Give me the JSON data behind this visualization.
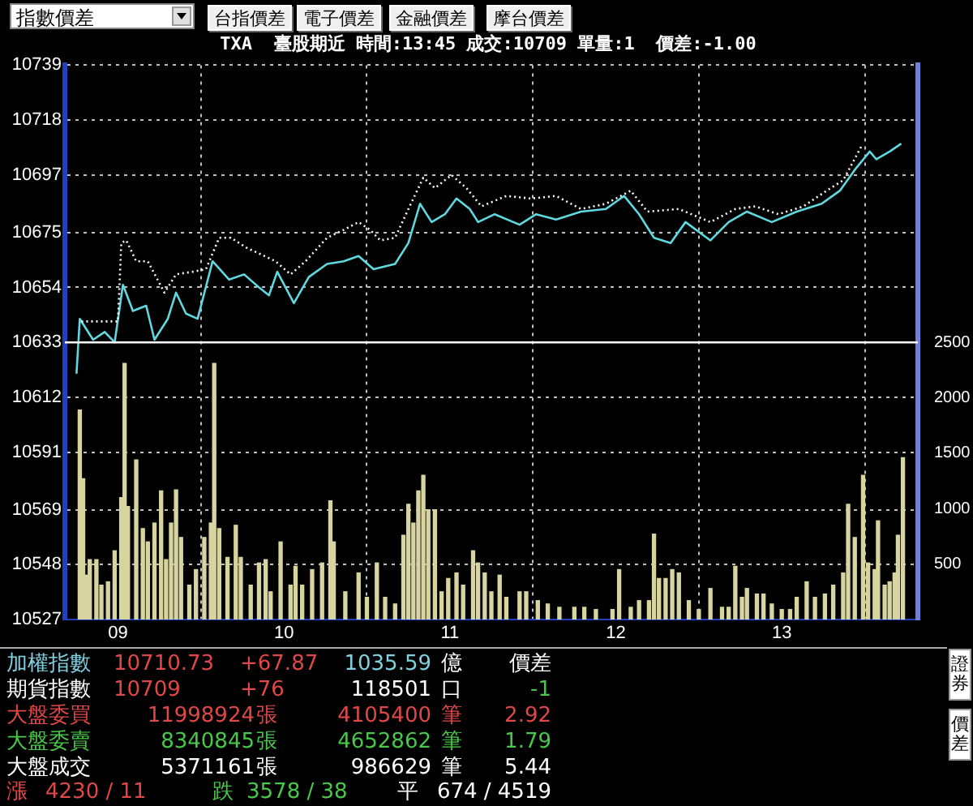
{
  "chart_data": {
    "type": "line",
    "title": "TXA  臺股期近 時間:13:45 成交:10709 單量:1  價差:-1.00",
    "annotations": [
      "指數價差",
      "台指價差",
      "電子價差",
      "金融價差",
      "摩台價差",
      "加權指數",
      "10710.73",
      "+67.87",
      "1035.59",
      "億",
      "價差",
      "期貨指數",
      "10709",
      "+76",
      "118501",
      "口",
      "-1",
      "大盤委買",
      "11998924",
      "張",
      "4105400",
      "筆",
      "2.92",
      "大盤委賣",
      "8340845",
      "張",
      "4652862",
      "筆",
      "1.79",
      "大盤成交",
      "5371161",
      "張",
      "986629",
      "筆",
      "5.44",
      "漲",
      "4230 / 11",
      "跌",
      "3578 / 38",
      "平",
      "674 / 4519",
      "證券",
      "價差"
    ],
    "xlim": [
      8.68,
      13.82
    ],
    "xticks": [
      {
        "value": 9,
        "label": "09"
      },
      {
        "value": 10,
        "label": "10"
      },
      {
        "value": 11,
        "label": "11"
      },
      {
        "value": 12,
        "label": "12"
      },
      {
        "value": 13,
        "label": "13"
      }
    ],
    "ylim": [
      10527,
      10739
    ],
    "yticks": [
      10527,
      10548,
      10569,
      10591,
      10612,
      10633,
      10654,
      10675,
      10697,
      10718,
      10739
    ],
    "y2lim": [
      0,
      5000
    ],
    "y2ticks": [
      500,
      1000,
      1500,
      2000,
      2500
    ],
    "grid": true,
    "ref_lines": [
      {
        "axis": "y",
        "value": 10633,
        "color": "#ffffff"
      }
    ],
    "series": [
      {
        "type": "bar",
        "axis": "y2",
        "color": "#d8d4a0",
        "x": [
          8.77,
          8.79,
          8.81,
          8.83,
          8.87,
          8.9,
          8.94,
          8.98,
          9.02,
          9.04,
          9.06,
          9.11,
          9.15,
          9.18,
          9.22,
          9.26,
          9.29,
          9.32,
          9.35,
          9.38,
          9.43,
          9.47,
          9.52,
          9.56,
          9.58,
          9.61,
          9.66,
          9.71,
          9.74,
          9.8,
          9.85,
          9.89,
          9.92,
          9.98,
          10.04,
          10.07,
          10.11,
          10.17,
          10.23,
          10.28,
          10.3,
          10.37,
          10.45,
          10.5,
          10.56,
          10.61,
          10.67,
          10.72,
          10.75,
          10.78,
          10.81,
          10.84,
          10.87,
          10.91,
          10.95,
          10.99,
          11.04,
          11.08,
          11.14,
          11.17,
          11.21,
          11.25,
          11.3,
          11.34,
          11.42,
          11.46,
          11.53,
          11.59,
          11.66,
          11.75,
          11.81,
          11.88,
          11.98,
          12.02,
          12.09,
          12.14,
          12.2,
          12.23,
          12.26,
          12.3,
          12.34,
          12.38,
          12.44,
          12.5,
          12.57,
          12.64,
          12.68,
          12.72,
          12.76,
          12.79,
          12.85,
          12.89,
          12.94,
          13.0,
          13.05,
          13.09,
          13.15,
          13.2,
          13.26,
          13.31,
          13.37,
          13.4,
          13.44,
          13.49,
          13.52,
          13.56,
          13.58,
          13.62,
          13.65,
          13.68,
          13.7,
          13.73
        ],
        "values": [
          1890,
          1270,
          400,
          540,
          540,
          310,
          340,
          620,
          1100,
          2310,
          1020,
          1440,
          820,
          700,
          870,
          1160,
          540,
          870,
          1170,
          740,
          310,
          450,
          740,
          870,
          2310,
          820,
          560,
          850,
          560,
          310,
          510,
          540,
          250,
          700,
          310,
          480,
          310,
          450,
          510,
          1070,
          700,
          250,
          420,
          200,
          510,
          200,
          140,
          760,
          1040,
          870,
          1160,
          1300,
          990,
          990,
          250,
          370,
          420,
          310,
          620,
          510,
          420,
          250,
          400,
          200,
          250,
          250,
          170,
          140,
          110,
          110,
          110,
          90,
          90,
          450,
          110,
          170,
          170,
          770,
          370,
          370,
          450,
          420,
          170,
          90,
          280,
          110,
          110,
          480,
          200,
          280,
          230,
          230,
          140,
          90,
          90,
          200,
          340,
          200,
          230,
          310,
          420,
          1040,
          740,
          1300,
          510,
          450,
          890,
          310,
          340,
          420,
          760,
          1460
        ]
      },
      {
        "color": "#ffffff",
        "line_style": "dotted",
        "x": [
          8.78,
          9.0,
          9.02,
          9.05,
          9.11,
          9.18,
          9.28,
          9.35,
          9.45,
          9.53,
          9.61,
          9.68,
          9.78,
          9.85,
          9.95,
          10.04,
          10.13,
          10.26,
          10.36,
          10.45,
          10.52,
          10.58,
          10.67,
          10.75,
          10.84,
          10.91,
          11.01,
          11.1,
          11.19,
          11.34,
          11.49,
          11.64,
          11.79,
          11.94,
          12.09,
          12.19,
          12.38,
          12.57,
          12.72,
          12.84,
          12.98,
          13.13,
          13.27,
          13.37,
          13.48
        ],
        "values": [
          10641,
          10641,
          10671,
          10672,
          10664,
          10664,
          10652,
          10659,
          10660,
          10661,
          10673,
          10673,
          10669,
          10667,
          10664,
          10659,
          10664,
          10673,
          10676,
          10679,
          10676,
          10672,
          10673,
          10684,
          10696,
          10692,
          10697,
          10692,
          10685,
          10689,
          10688,
          10689,
          10684,
          10686,
          10691,
          10683,
          10684,
          10679,
          10684,
          10685,
          10682,
          10685,
          10691,
          10695,
          10708
        ]
      },
      {
        "color": "#60d8e0",
        "x": [
          8.75,
          8.77,
          8.85,
          8.92,
          8.98,
          9.03,
          9.09,
          9.17,
          9.22,
          9.3,
          9.35,
          9.41,
          9.48,
          9.57,
          9.67,
          9.76,
          9.85,
          9.91,
          9.96,
          10.06,
          10.15,
          10.26,
          10.36,
          10.45,
          10.54,
          10.67,
          10.75,
          10.82,
          10.89,
          10.97,
          11.04,
          11.12,
          11.17,
          11.27,
          11.42,
          11.52,
          11.64,
          11.79,
          11.94,
          12.05,
          12.14,
          12.23,
          12.33,
          12.42,
          12.57,
          12.68,
          12.79,
          12.94,
          13.09,
          13.24,
          13.35,
          13.44,
          13.53,
          13.57,
          13.65,
          13.72
        ],
        "values": [
          10621,
          10642,
          10634,
          10637,
          10633,
          10655,
          10645,
          10647,
          10634,
          10642,
          10652,
          10644,
          10642,
          10664,
          10657,
          10659,
          10654,
          10651,
          10660,
          10648,
          10658,
          10663,
          10664,
          10666,
          10661,
          10663,
          10671,
          10686,
          10679,
          10682,
          10688,
          10684,
          10679,
          10682,
          10678,
          10682,
          10680,
          10683,
          10684,
          10689,
          10682,
          10673,
          10671,
          10679,
          10672,
          10679,
          10683,
          10679,
          10683,
          10686,
          10691,
          10699,
          10706,
          10703,
          10706,
          10709
        ]
      }
    ]
  }
}
